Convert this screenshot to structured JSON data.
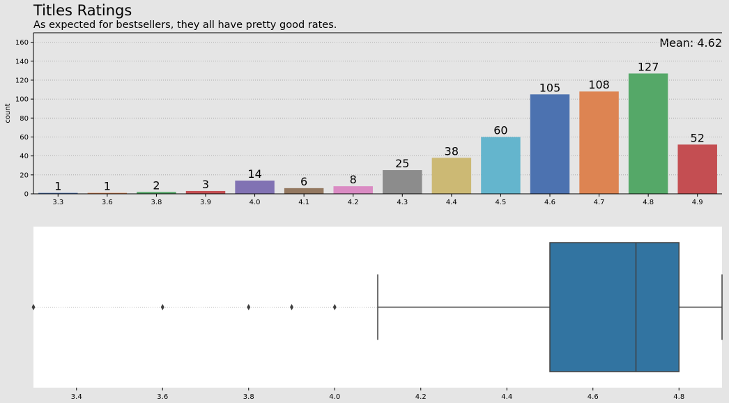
{
  "title": "Titles Ratings",
  "subtitle": "As expected for bestsellers, they all have pretty good rates.",
  "mean_label": "Mean: 4.62",
  "chart_data": [
    {
      "type": "bar",
      "ylabel": "count",
      "ylim": [
        0,
        170
      ],
      "yticks": [
        0,
        20,
        40,
        60,
        80,
        100,
        120,
        140,
        160
      ],
      "grid": "horizontal dotted",
      "categories": [
        "3.3",
        "3.6",
        "3.8",
        "3.9",
        "4.0",
        "4.1",
        "4.2",
        "4.3",
        "4.4",
        "4.5",
        "4.6",
        "4.7",
        "4.8",
        "4.9"
      ],
      "values": [
        1,
        1,
        2,
        3,
        14,
        6,
        8,
        25,
        38,
        60,
        105,
        108,
        127,
        52
      ],
      "colors": [
        "#4c72b0",
        "#dd8452",
        "#55a868",
        "#c44e52",
        "#8172b3",
        "#937860",
        "#da8bc3",
        "#8c8c8c",
        "#ccb974",
        "#64b5cd",
        "#4c72b0",
        "#dd8452",
        "#55a868",
        "#c44e52"
      ]
    },
    {
      "type": "box",
      "xlim": [
        3.3,
        4.9
      ],
      "xticks": [
        3.4,
        3.6,
        3.8,
        4.0,
        4.2,
        4.4,
        4.6,
        4.8
      ],
      "whisker_low": 4.1,
      "q1": 4.5,
      "median": 4.7,
      "q3": 4.8,
      "whisker_high": 4.9,
      "outliers": [
        3.3,
        3.6,
        3.8,
        3.9,
        4.0
      ],
      "box_color": "#3274a1"
    }
  ]
}
